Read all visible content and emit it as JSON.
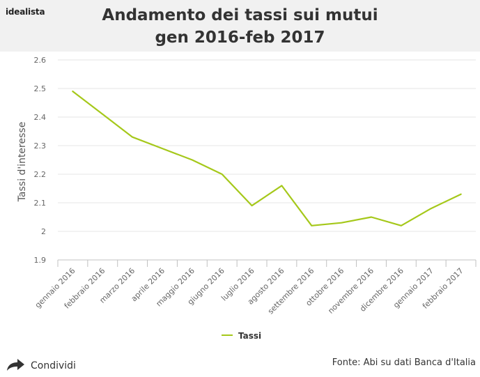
{
  "brand": {
    "logo_text": "idealista"
  },
  "header": {
    "title_line1": "Andamento dei tassi sui mutui",
    "title_line2": "gen 2016-feb 2017"
  },
  "footer": {
    "share_label": "Condividi",
    "source": "Fonte: Abi su dati Banca d'Italia"
  },
  "colors": {
    "series": "#a5c81a",
    "grid": "#e6e6e6",
    "axis": "#c0c0c0",
    "header_bg": "#f1f1f1"
  },
  "chart_data": {
    "type": "line",
    "title": "",
    "ylabel": "Tassi d'interesse",
    "xlabel": "",
    "ylim": [
      1.9,
      2.6
    ],
    "yticks": [
      "1.9",
      "2",
      "2.1",
      "2.2",
      "2.3",
      "2.4",
      "2.5",
      "2.6"
    ],
    "grid": true,
    "legend_position": "bottom-center",
    "categories": [
      "gennaio 2016",
      "febbraio 2016",
      "marzo 2016",
      "aprile 2016",
      "maggio 2016",
      "giugno 2016",
      "luglio 2016",
      "agosto 2016",
      "settembre 2016",
      "ottobre 2016",
      "novembre 2016",
      "dicembre 2016",
      "gennaio 2017",
      "febbraio 2017"
    ],
    "series": [
      {
        "name": "Tassi",
        "values": [
          2.49,
          2.41,
          2.33,
          2.29,
          2.25,
          2.2,
          2.09,
          2.16,
          2.02,
          2.03,
          2.05,
          2.02,
          2.08,
          2.13
        ]
      }
    ]
  }
}
